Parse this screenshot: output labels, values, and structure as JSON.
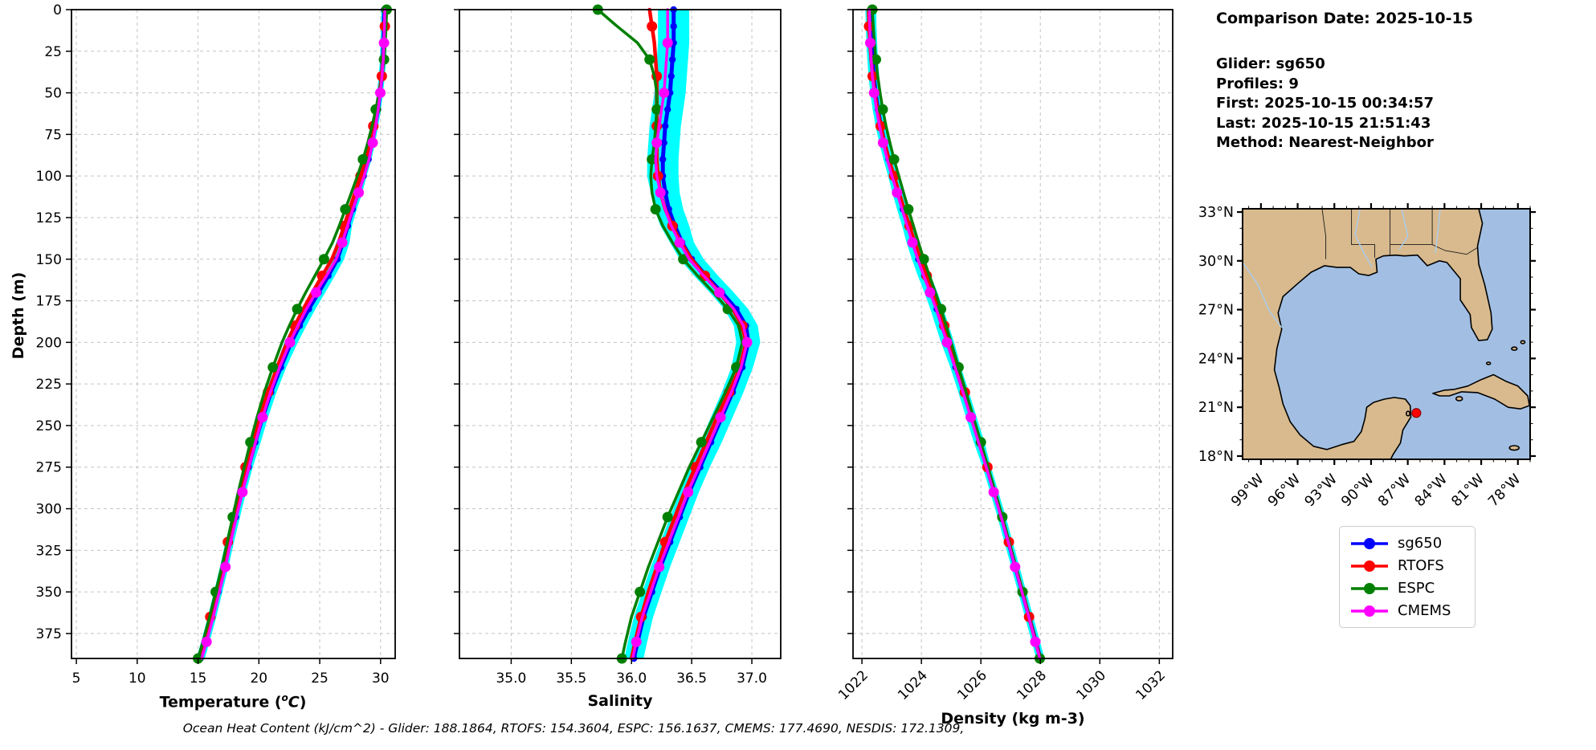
{
  "info_panel": {
    "title": "Comparison Date: 2025-10-15",
    "lines": [
      "Glider: sg650",
      "Profiles: 9",
      "First: 2025-10-15 00:34:57",
      "Last: 2025-10-15 21:51:43",
      "Method: Nearest-Neighbor"
    ]
  },
  "footer_text": "Ocean Heat Content (kJ/cm^2) - Glider: 188.1864,  RTOFS: 154.3604,  ESPC: 156.1637,  CMEMS: 177.4690,  NESDIS: 172.1309,",
  "legend": {
    "entries": [
      {
        "label": "sg650",
        "color": "#0000ff"
      },
      {
        "label": "RTOFS",
        "color": "#ff0000"
      },
      {
        "label": "ESPC",
        "color": "#008000"
      },
      {
        "label": "CMEMS",
        "color": "#ff00ff"
      }
    ]
  },
  "map": {
    "lat_tick_labels": [
      "33°N",
      "30°N",
      "27°N",
      "24°N",
      "21°N",
      "18°N"
    ],
    "lat_tick_values": [
      33,
      30,
      27,
      24,
      21,
      18
    ],
    "lon_tick_labels": [
      "99°W",
      "96°W",
      "93°W",
      "90°W",
      "87°W",
      "84°W",
      "81°W",
      "78°W"
    ],
    "lon_tick_values": [
      -99,
      -96,
      -93,
      -90,
      -87,
      -84,
      -81,
      -78
    ],
    "lon_range": [
      -100.5,
      -77.0
    ],
    "lat_range": [
      17.8,
      33.2
    ],
    "marker": {
      "lon": -86.3,
      "lat": 20.65,
      "color": "#ff0000"
    },
    "land_color": "#d8ba8e",
    "water_color": "#a2bfe3",
    "river_color": "#a9cdf0"
  },
  "chart_data": [
    {
      "type": "line",
      "xlabel_pre": "Temperature (",
      "xlabel_sup": "o",
      "xlabel_it": "C",
      "xlabel_post": ")",
      "ylabel": "Depth (m)",
      "xlim": [
        4.6,
        31.2
      ],
      "ylim": [
        0,
        390
      ],
      "xticks": [
        5,
        10,
        15,
        20,
        25,
        30
      ],
      "xtick_labels": [
        "5",
        "10",
        "15",
        "20",
        "25",
        "30"
      ],
      "yticks": [
        0,
        25,
        50,
        75,
        100,
        125,
        150,
        175,
        200,
        225,
        250,
        275,
        300,
        325,
        350,
        375
      ],
      "ytick_labels": [
        "0",
        "25",
        "50",
        "75",
        "100",
        "125",
        "150",
        "175",
        "200",
        "225",
        "250",
        "275",
        "300",
        "325",
        "350",
        "375"
      ],
      "rotate_xticks": false,
      "show_ytick_labels": true,
      "depths": [
        0,
        10,
        20,
        30,
        40,
        50,
        60,
        70,
        80,
        90,
        100,
        110,
        120,
        130,
        140,
        150,
        160,
        170,
        180,
        190,
        200,
        215,
        230,
        245,
        260,
        275,
        290,
        305,
        320,
        335,
        350,
        365,
        380,
        390
      ],
      "envelope": {
        "series": "sg650",
        "color": "#00ffff",
        "band": [
          0.25,
          0.25,
          0.25,
          0.25,
          0.25,
          0.25,
          0.25,
          0.25,
          0.25,
          0.25,
          0.25,
          0.35,
          0.35,
          0.35,
          0.55,
          0.55,
          0.55,
          0.55,
          0.55,
          0.55,
          0.55,
          0.45,
          0.45,
          0.45,
          0.45,
          0.35,
          0.35,
          0.35,
          0.35,
          0.35,
          0.35,
          0.35,
          0.35,
          0.35
        ]
      },
      "series": [
        {
          "name": "sg650",
          "color": "#0000ff",
          "line_width": 5,
          "marker_radius": 4.2,
          "marker_every": 1,
          "marker_offset": 0,
          "values": [
            30.3,
            30.28,
            30.25,
            30.2,
            30.1,
            29.95,
            29.78,
            29.55,
            29.3,
            29.0,
            28.6,
            28.15,
            27.7,
            27.3,
            26.9,
            26.45,
            25.7,
            24.9,
            24.1,
            23.35,
            22.65,
            21.8,
            21.0,
            20.3,
            19.7,
            19.15,
            18.6,
            18.1,
            17.6,
            17.15,
            16.65,
            16.15,
            15.6,
            15.2
          ]
        },
        {
          "name": "RTOFS",
          "color": "#ff0000",
          "line_width": 4.5,
          "marker_radius": 6.5,
          "marker_every": 3,
          "marker_offset": 1,
          "values": [
            30.4,
            30.35,
            30.3,
            30.22,
            30.1,
            29.9,
            29.65,
            29.4,
            29.1,
            28.75,
            28.35,
            27.9,
            27.45,
            27.0,
            26.55,
            26.0,
            25.2,
            24.4,
            23.65,
            22.95,
            22.3,
            21.5,
            20.75,
            20.05,
            19.45,
            18.9,
            18.4,
            17.9,
            17.45,
            17.0,
            16.5,
            16.0,
            15.45,
            15.05
          ]
        },
        {
          "name": "ESPC",
          "color": "#008000",
          "line_width": 3.5,
          "marker_radius": 6.5,
          "marker_every": 3,
          "marker_offset": 0,
          "values": [
            30.5,
            30.45,
            30.38,
            30.28,
            30.12,
            29.9,
            29.6,
            29.3,
            28.95,
            28.55,
            28.1,
            27.6,
            27.1,
            26.6,
            26.05,
            25.35,
            24.6,
            23.85,
            23.15,
            22.5,
            21.9,
            21.15,
            20.45,
            19.85,
            19.3,
            18.8,
            18.3,
            17.85,
            17.4,
            16.95,
            16.45,
            15.95,
            15.4,
            15.0
          ]
        },
        {
          "name": "CMEMS",
          "color": "#ff00ff",
          "line_width": 3.5,
          "marker_radius": 6.5,
          "marker_every": 3,
          "marker_offset": 2,
          "values": [
            30.35,
            30.32,
            30.28,
            30.22,
            30.12,
            29.98,
            29.8,
            29.6,
            29.35,
            29.05,
            28.65,
            28.2,
            27.72,
            27.28,
            26.85,
            26.35,
            25.55,
            24.7,
            23.9,
            23.2,
            22.55,
            21.7,
            20.95,
            20.3,
            19.72,
            19.18,
            18.65,
            18.15,
            17.68,
            17.25,
            16.75,
            16.25,
            15.7,
            15.3
          ]
        }
      ]
    },
    {
      "type": "line",
      "xlabel": "Salinity",
      "xlim": [
        34.57,
        37.24
      ],
      "ylim": [
        0,
        390
      ],
      "xticks": [
        35.0,
        35.5,
        36.0,
        36.5,
        37.0
      ],
      "xtick_labels": [
        "35.0",
        "35.5",
        "36.0",
        "36.5",
        "37.0"
      ],
      "yticks": [
        0,
        25,
        50,
        75,
        100,
        125,
        150,
        175,
        200,
        225,
        250,
        275,
        300,
        325,
        350,
        375
      ],
      "rotate_xticks": false,
      "show_ytick_labels": false,
      "depths": [
        0,
        10,
        20,
        30,
        40,
        50,
        60,
        70,
        80,
        90,
        100,
        110,
        120,
        130,
        140,
        150,
        160,
        170,
        180,
        190,
        200,
        215,
        230,
        245,
        260,
        275,
        290,
        305,
        320,
        335,
        350,
        365,
        380,
        390
      ],
      "envelope": {
        "series": "sg650",
        "color": "#00ffff",
        "band": [
          0.13,
          0.13,
          0.13,
          0.13,
          0.13,
          0.13,
          0.13,
          0.13,
          0.13,
          0.13,
          0.13,
          0.12,
          0.12,
          0.12,
          0.1,
          0.1,
          0.1,
          0.1,
          0.1,
          0.1,
          0.1,
          0.09,
          0.09,
          0.09,
          0.09,
          0.08,
          0.08,
          0.08,
          0.08,
          0.08,
          0.08,
          0.08,
          0.08,
          0.08
        ]
      },
      "series": [
        {
          "name": "sg650",
          "color": "#0000ff",
          "line_width": 5,
          "marker_radius": 4.2,
          "marker_every": 1,
          "marker_offset": 0,
          "values": [
            36.35,
            36.35,
            36.35,
            36.34,
            36.33,
            36.32,
            36.3,
            36.28,
            36.27,
            36.26,
            36.26,
            36.28,
            36.31,
            36.36,
            36.42,
            36.5,
            36.62,
            36.75,
            36.87,
            36.95,
            36.97,
            36.92,
            36.84,
            36.75,
            36.66,
            36.57,
            36.48,
            36.4,
            36.32,
            36.24,
            36.17,
            36.1,
            36.05,
            36.02
          ]
        },
        {
          "name": "RTOFS",
          "color": "#ff0000",
          "line_width": 4.5,
          "marker_radius": 6.5,
          "marker_every": 3,
          "marker_offset": 1,
          "values": [
            36.15,
            36.17,
            36.19,
            36.2,
            36.21,
            36.21,
            36.21,
            36.21,
            36.21,
            36.21,
            36.22,
            36.24,
            36.28,
            36.34,
            36.41,
            36.5,
            36.61,
            36.73,
            36.84,
            36.92,
            36.95,
            36.9,
            36.81,
            36.71,
            36.62,
            36.53,
            36.44,
            36.36,
            36.28,
            36.21,
            36.14,
            36.08,
            36.03,
            36.0
          ]
        },
        {
          "name": "ESPC",
          "color": "#008000",
          "line_width": 3.5,
          "marker_radius": 6.5,
          "marker_every": 3,
          "marker_offset": 0,
          "values": [
            35.72,
            35.88,
            36.05,
            36.15,
            36.19,
            36.21,
            36.21,
            36.2,
            36.19,
            36.17,
            36.16,
            36.17,
            36.2,
            36.26,
            36.34,
            36.43,
            36.55,
            36.68,
            36.8,
            36.89,
            36.92,
            36.87,
            36.78,
            36.68,
            36.58,
            36.48,
            36.39,
            36.3,
            36.22,
            36.14,
            36.07,
            36.0,
            35.95,
            35.92
          ]
        },
        {
          "name": "CMEMS",
          "color": "#ff00ff",
          "line_width": 3.5,
          "marker_radius": 6.5,
          "marker_every": 3,
          "marker_offset": 2,
          "values": [
            36.3,
            36.3,
            36.3,
            36.29,
            36.28,
            36.27,
            36.25,
            36.23,
            36.21,
            36.2,
            36.21,
            36.24,
            36.28,
            36.33,
            36.4,
            36.48,
            36.6,
            36.73,
            36.85,
            36.93,
            36.96,
            36.91,
            36.83,
            36.74,
            36.65,
            36.56,
            36.47,
            36.39,
            36.31,
            36.23,
            36.16,
            36.09,
            36.04,
            36.01
          ]
        }
      ]
    },
    {
      "type": "line",
      "xlabel": "Density (kg m-3)",
      "xlim": [
        1021.7,
        1032.45
      ],
      "ylim": [
        0,
        390
      ],
      "xticks": [
        1022,
        1024,
        1026,
        1028,
        1030,
        1032
      ],
      "xtick_labels": [
        "1022",
        "1024",
        "1026",
        "1028",
        "1030",
        "1032"
      ],
      "yticks": [
        0,
        25,
        50,
        75,
        100,
        125,
        150,
        175,
        200,
        225,
        250,
        275,
        300,
        325,
        350,
        375
      ],
      "rotate_xticks": true,
      "show_ytick_labels": false,
      "depths": [
        0,
        10,
        20,
        30,
        40,
        50,
        60,
        70,
        80,
        90,
        100,
        110,
        120,
        130,
        140,
        150,
        160,
        170,
        180,
        190,
        200,
        215,
        230,
        245,
        260,
        275,
        290,
        305,
        320,
        335,
        350,
        365,
        380,
        390
      ],
      "envelope": {
        "series": "sg650",
        "color": "#00ffff",
        "band": [
          0.18,
          0.18,
          0.18,
          0.18,
          0.18,
          0.18,
          0.18,
          0.18,
          0.18,
          0.18,
          0.18,
          0.2,
          0.2,
          0.2,
          0.22,
          0.22,
          0.22,
          0.22,
          0.22,
          0.22,
          0.22,
          0.18,
          0.18,
          0.18,
          0.18,
          0.14,
          0.14,
          0.14,
          0.14,
          0.14,
          0.14,
          0.14,
          0.14,
          0.14
        ]
      },
      "series": [
        {
          "name": "sg650",
          "color": "#0000ff",
          "line_width": 5,
          "marker_radius": 4.2,
          "marker_every": 1,
          "marker_offset": 0,
          "values": [
            1022.3,
            1022.31,
            1022.33,
            1022.36,
            1022.4,
            1022.46,
            1022.54,
            1022.64,
            1022.76,
            1022.9,
            1023.06,
            1023.22,
            1023.38,
            1023.55,
            1023.72,
            1023.9,
            1024.1,
            1024.32,
            1024.52,
            1024.7,
            1024.88,
            1025.15,
            1025.42,
            1025.68,
            1025.94,
            1026.2,
            1026.45,
            1026.7,
            1026.93,
            1027.16,
            1027.39,
            1027.62,
            1027.85,
            1028.0
          ]
        },
        {
          "name": "RTOFS",
          "color": "#ff0000",
          "line_width": 4.5,
          "marker_radius": 6.5,
          "marker_every": 3,
          "marker_offset": 1,
          "values": [
            1022.22,
            1022.24,
            1022.27,
            1022.31,
            1022.36,
            1022.43,
            1022.52,
            1022.63,
            1022.76,
            1022.91,
            1023.08,
            1023.25,
            1023.42,
            1023.6,
            1023.78,
            1023.97,
            1024.18,
            1024.39,
            1024.59,
            1024.77,
            1024.94,
            1025.2,
            1025.46,
            1025.72,
            1025.97,
            1026.22,
            1026.47,
            1026.71,
            1026.94,
            1027.17,
            1027.4,
            1027.62,
            1027.84,
            1027.99
          ]
        },
        {
          "name": "ESPC",
          "color": "#008000",
          "line_width": 3.5,
          "marker_radius": 6.5,
          "marker_every": 3,
          "marker_offset": 0,
          "values": [
            1022.35,
            1022.38,
            1022.42,
            1022.47,
            1022.53,
            1022.61,
            1022.7,
            1022.81,
            1022.94,
            1023.08,
            1023.24,
            1023.4,
            1023.56,
            1023.73,
            1023.9,
            1024.08,
            1024.27,
            1024.47,
            1024.66,
            1024.83,
            1025.0,
            1025.25,
            1025.5,
            1025.75,
            1026.0,
            1026.24,
            1026.48,
            1026.72,
            1026.95,
            1027.18,
            1027.4,
            1027.62,
            1027.84,
            1027.98
          ]
        },
        {
          "name": "CMEMS",
          "color": "#ff00ff",
          "line_width": 3.5,
          "marker_radius": 6.5,
          "marker_every": 3,
          "marker_offset": 2,
          "values": [
            1022.25,
            1022.26,
            1022.28,
            1022.31,
            1022.35,
            1022.41,
            1022.49,
            1022.59,
            1022.71,
            1022.85,
            1023.01,
            1023.18,
            1023.35,
            1023.52,
            1023.7,
            1023.88,
            1024.08,
            1024.29,
            1024.5,
            1024.68,
            1024.86,
            1025.13,
            1025.4,
            1025.66,
            1025.92,
            1026.18,
            1026.43,
            1026.68,
            1026.92,
            1027.15,
            1027.38,
            1027.61,
            1027.83,
            1027.98
          ]
        }
      ]
    }
  ]
}
